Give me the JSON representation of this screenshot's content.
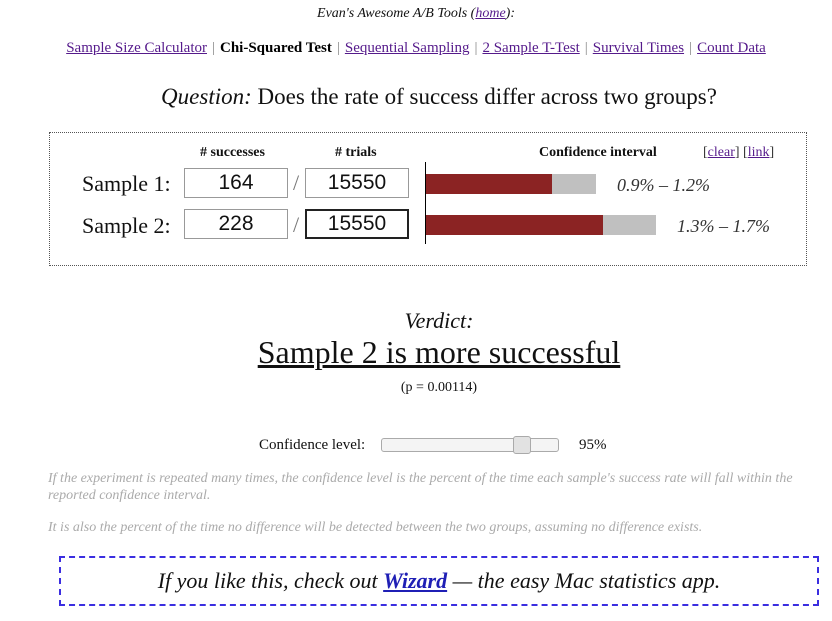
{
  "header": {
    "text": "Evan's Awesome A/B Tools (",
    "home_link": "home",
    "suffix": "):"
  },
  "nav": {
    "items": [
      {
        "label": "Sample Size Calculator"
      },
      {
        "label": "Chi-Squared Test"
      },
      {
        "label": "Sequential Sampling"
      },
      {
        "label": "2 Sample T-Test"
      },
      {
        "label": "Survival Times"
      },
      {
        "label": "Count Data"
      }
    ],
    "separator": "|"
  },
  "question": {
    "prefix": "Question:",
    "text": "Does the rate of success differ across two groups?"
  },
  "table": {
    "col_successes": "# successes",
    "col_trials": "# trials",
    "col_ci": "Confidence interval",
    "clear_link": "clear",
    "link_link": "link",
    "bracket_open": "[",
    "bracket_close": "]",
    "slash": "/",
    "samples": [
      {
        "label": "Sample 1:",
        "successes": "164",
        "trials": "15550",
        "ci": "0.9% – 1.2%",
        "bar_fraction": 0.74
      },
      {
        "label": "Sample 2:",
        "successes": "228",
        "trials": "15550",
        "ci": "1.3% – 1.7%",
        "bar_fraction": 0.77
      }
    ]
  },
  "verdict": {
    "heading": "Verdict:",
    "text": "Sample 2 is more successful",
    "p": "(p = 0.00114)"
  },
  "confidence": {
    "label": "Confidence level:",
    "value": "95%",
    "slider_fraction": 0.75
  },
  "notes": [
    "If the experiment is repeated many times, the confidence level is the percent of the time each sample's success rate will fall within the reported confidence interval.",
    "It is also the percent of the time no difference will be detected between the two groups, assuming no difference exists."
  ],
  "promo": {
    "prefix": "If you like this, check out",
    "link": "Wizard",
    "suffix": "— the easy Mac statistics app."
  }
}
